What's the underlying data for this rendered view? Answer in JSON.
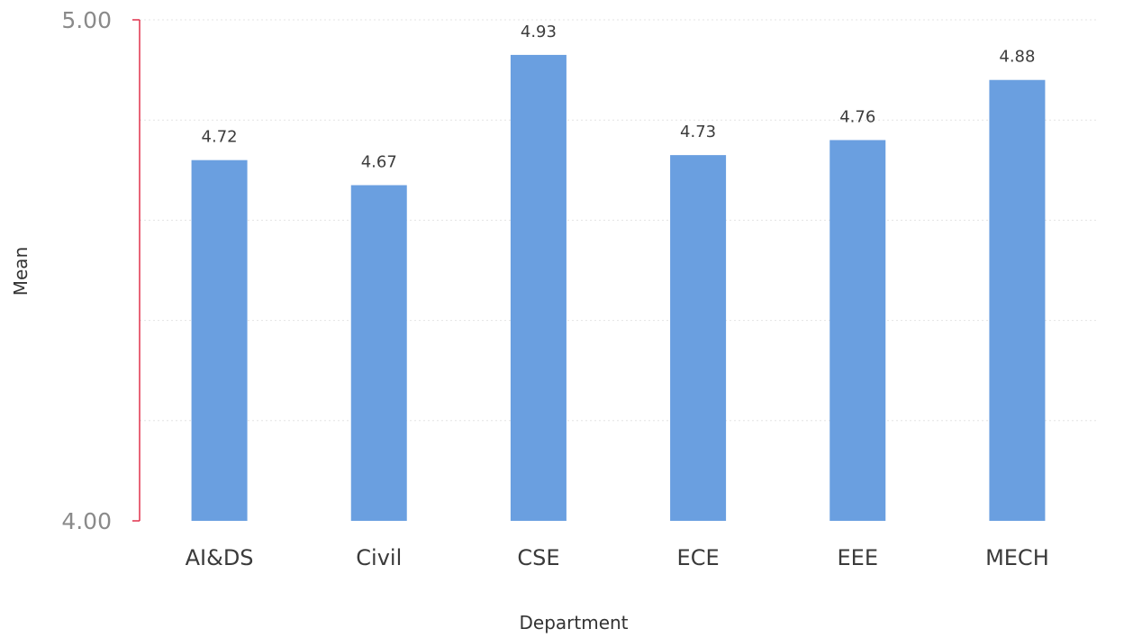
{
  "chart_data": {
    "type": "bar",
    "categories": [
      "AI&DS",
      "Civil",
      "CSE",
      "ECE",
      "EEE",
      "MECH"
    ],
    "values": [
      4.72,
      4.67,
      4.93,
      4.73,
      4.76,
      4.88
    ],
    "value_labels": [
      "4.72",
      "4.67",
      "4.93",
      "4.73",
      "4.76",
      "4.88"
    ],
    "xlabel": "Department",
    "ylabel": "Mean",
    "ylim": [
      4.0,
      5.0
    ],
    "yticks": [
      "4.00",
      "5.00"
    ],
    "grid": true,
    "legend": "none"
  },
  "colors": {
    "bar": "#6a9fe0",
    "y_axis_line": "#e0314b",
    "tick_label": "#8a8a8a"
  }
}
